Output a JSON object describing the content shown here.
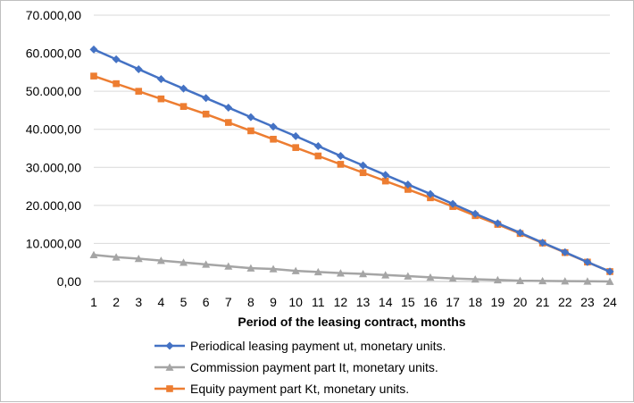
{
  "chart_data": {
    "type": "line",
    "title": "",
    "xlabel": "Period of the leasing contract, months",
    "ylabel": "",
    "x": [
      1,
      2,
      3,
      4,
      5,
      6,
      7,
      8,
      9,
      10,
      11,
      12,
      13,
      14,
      15,
      16,
      17,
      18,
      19,
      20,
      21,
      22,
      23,
      24
    ],
    "ylim": [
      0,
      70000
    ],
    "y_ticks": [
      0,
      10000,
      20000,
      30000,
      40000,
      50000,
      60000,
      70000
    ],
    "y_tick_labels": [
      "0,00",
      "10.000,00",
      "20.000,00",
      "30.000,00",
      "40.000,00",
      "50.000,00",
      "60.000,00",
      "70.000,00"
    ],
    "grid": "horizontal",
    "legend_position": "bottom",
    "series": [
      {
        "name": "Periodical leasing payment ut, monetary units.",
        "color": "#4472c4",
        "marker": "diamond",
        "values": [
          61000,
          58400,
          55800,
          53200,
          50700,
          48200,
          45700,
          43200,
          40700,
          38200,
          35600,
          33000,
          30500,
          28000,
          25500,
          23000,
          20400,
          17800,
          15300,
          12800,
          10200,
          7700,
          5100,
          2600
        ]
      },
      {
        "name": "Commission payment part It, monetary units.",
        "color": "#a5a5a5",
        "marker": "triangle",
        "values": [
          7000,
          6400,
          6000,
          5500,
          5000,
          4500,
          4000,
          3500,
          3300,
          2800,
          2500,
          2200,
          2000,
          1700,
          1400,
          1100,
          800,
          600,
          400,
          200,
          150,
          100,
          50,
          0
        ]
      },
      {
        "name": "Equity payment part Kt, monetary units.",
        "color": "#ed7d31",
        "marker": "square",
        "values": [
          54000,
          52000,
          50000,
          48000,
          46000,
          44000,
          41800,
          39600,
          37400,
          35200,
          33000,
          30800,
          28600,
          26400,
          24200,
          22000,
          19700,
          17300,
          15000,
          12600,
          10100,
          7600,
          5100,
          2600
        ]
      }
    ]
  }
}
